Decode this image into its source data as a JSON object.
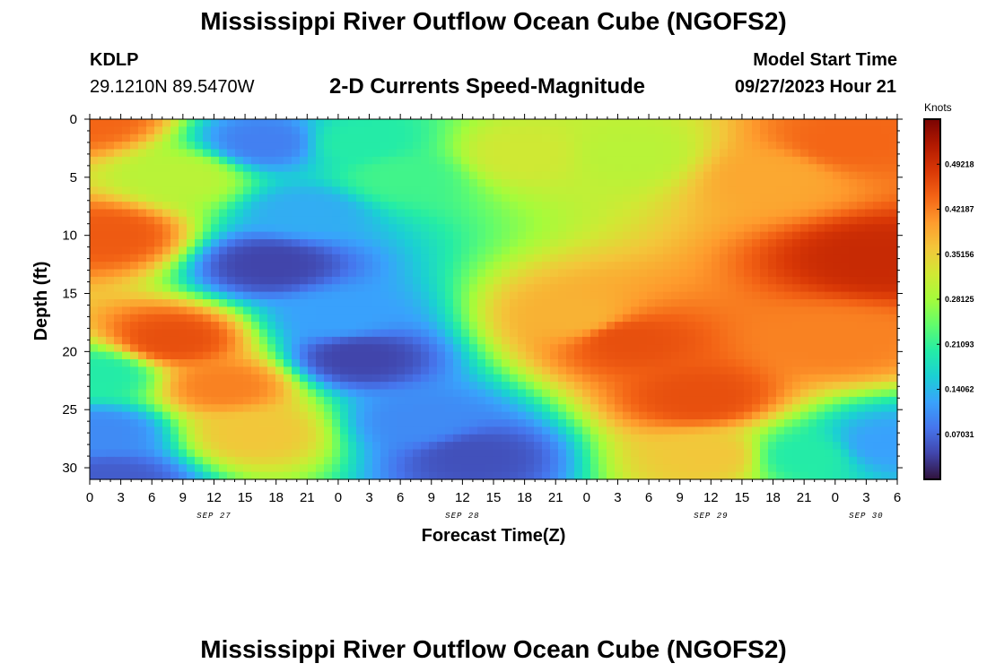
{
  "header": {
    "title": "Mississippi River Outflow Ocean Cube (NGOFS2)",
    "station": "KDLP",
    "coords": "29.1210N  89.5470W",
    "subtitle": "2-D Currents Speed-Magnitude",
    "model_start_label": "Model Start Time",
    "model_start_value": "09/27/2023 Hour 21"
  },
  "footer": {
    "title": "Mississippi River Outflow Ocean Cube (NGOFS2)"
  },
  "chart_data": {
    "type": "heatmap",
    "xlabel": "Forecast Time(Z)",
    "ylabel": "Depth (ft)",
    "xlim": [
      0,
      78
    ],
    "ylim": [
      0,
      31
    ],
    "x_ticks": [
      0,
      3,
      6,
      9,
      12,
      15,
      18,
      21,
      24,
      27,
      30,
      33,
      36,
      39,
      42,
      45,
      48,
      51,
      54,
      57,
      60,
      63,
      66,
      69,
      72,
      75,
      78
    ],
    "x_tick_labels": [
      "0",
      "3",
      "6",
      "9",
      "12",
      "15",
      "18",
      "21",
      "0",
      "3",
      "6",
      "9",
      "12",
      "15",
      "18",
      "21",
      "0",
      "3",
      "6",
      "9",
      "12",
      "15",
      "18",
      "21",
      "0",
      "3",
      "6"
    ],
    "day_labels": [
      {
        "label": "SEP 27",
        "x": 12
      },
      {
        "label": "SEP 28",
        "x": 36
      },
      {
        "label": "SEP 29",
        "x": 60
      },
      {
        "label": "SEP 30",
        "x": 75
      }
    ],
    "y_ticks": [
      0,
      5,
      10,
      15,
      20,
      25,
      30
    ],
    "y_tick_labels": [
      "0",
      "5",
      "10",
      "15",
      "20",
      "25",
      "30"
    ],
    "colorbar": {
      "unit": "Knots",
      "range": [
        0,
        0.5625
      ],
      "ticks": [
        0.49218,
        0.42187,
        0.35156,
        0.28125,
        0.21093,
        0.14062,
        0.07031
      ],
      "tick_labels": [
        "0.49218",
        "0.42187",
        "0.35156",
        "0.28125",
        "0.21093",
        "0.14062",
        "0.07031"
      ],
      "colors": [
        "#30123b",
        "#4145ab",
        "#4675ed",
        "#39a2fc",
        "#1bcfd4",
        "#24eca6",
        "#61fc6c",
        "#a4fc3b",
        "#d1e834",
        "#f3c63a",
        "#fe9b2d",
        "#f36315",
        "#d93806",
        "#b11901",
        "#7a0402"
      ]
    },
    "field_features": [
      {
        "x": 0,
        "depth": 0,
        "value": 0.44
      },
      {
        "x": 2,
        "depth": 10,
        "value": 0.45
      },
      {
        "x": 1,
        "depth": 22,
        "value": 0.2
      },
      {
        "x": 1,
        "depth": 27,
        "value": 0.1
      },
      {
        "x": 2,
        "depth": 31,
        "value": 0.06
      },
      {
        "x": 9,
        "depth": 5,
        "value": 0.3
      },
      {
        "x": 8,
        "depth": 19,
        "value": 0.46
      },
      {
        "x": 13,
        "depth": 23,
        "value": 0.42
      },
      {
        "x": 16,
        "depth": 27,
        "value": 0.36
      },
      {
        "x": 17,
        "depth": 2,
        "value": 0.09
      },
      {
        "x": 17.5,
        "depth": 12.5,
        "value": 0.04
      },
      {
        "x": 21,
        "depth": 8,
        "value": 0.13
      },
      {
        "x": 26,
        "depth": 2,
        "value": 0.2
      },
      {
        "x": 30,
        "depth": 5,
        "value": 0.22
      },
      {
        "x": 24,
        "depth": 17,
        "value": 0.12
      },
      {
        "x": 26,
        "depth": 20.5,
        "value": 0.04
      },
      {
        "x": 32,
        "depth": 26,
        "value": 0.1
      },
      {
        "x": 37,
        "depth": 29,
        "value": 0.05
      },
      {
        "x": 42,
        "depth": 3,
        "value": 0.32
      },
      {
        "x": 52,
        "depth": 3,
        "value": 0.3
      },
      {
        "x": 47,
        "depth": 17,
        "value": 0.38
      },
      {
        "x": 52,
        "depth": 19,
        "value": 0.46
      },
      {
        "x": 59,
        "depth": 24,
        "value": 0.46
      },
      {
        "x": 60,
        "depth": 29,
        "value": 0.36
      },
      {
        "x": 66,
        "depth": 5,
        "value": 0.39
      },
      {
        "x": 73,
        "depth": 2,
        "value": 0.44
      },
      {
        "x": 76,
        "depth": 12,
        "value": 0.5
      },
      {
        "x": 72,
        "depth": 19,
        "value": 0.42
      },
      {
        "x": 77,
        "depth": 28,
        "value": 0.12
      },
      {
        "x": 69,
        "depth": 29,
        "value": 0.2
      }
    ]
  }
}
